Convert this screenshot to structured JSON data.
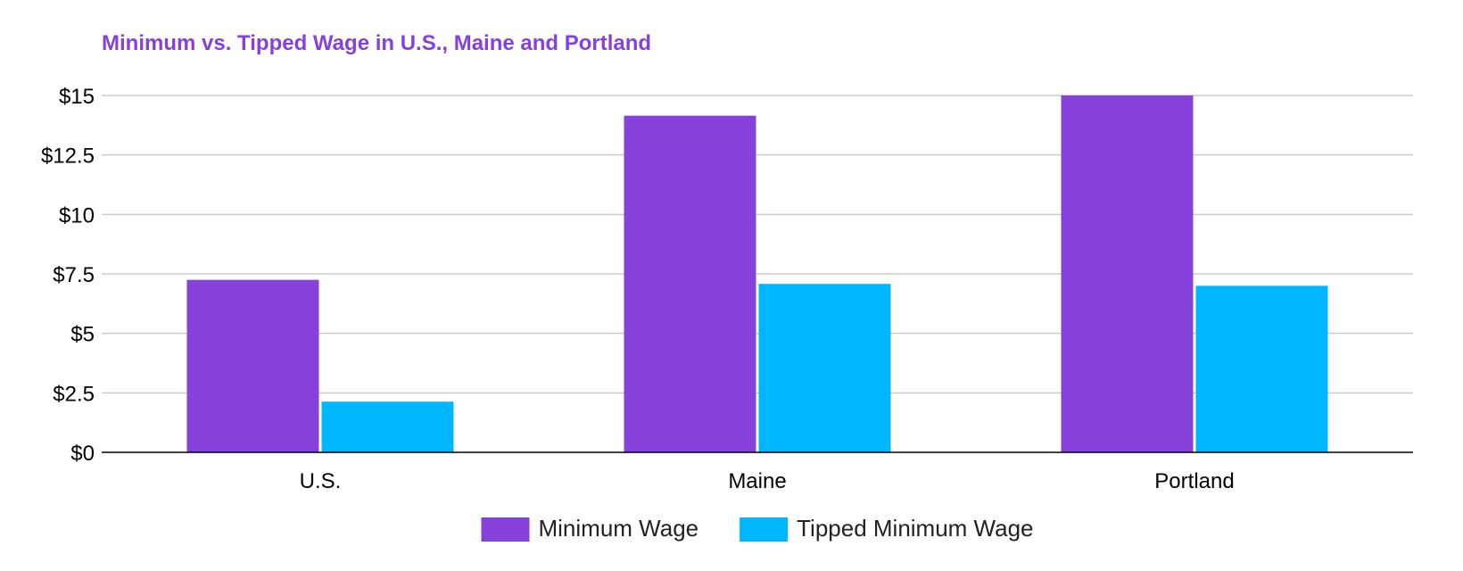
{
  "chart_data": {
    "type": "bar",
    "title": "Minimum vs. Tipped Wage in U.S., Maine and Portland",
    "xlabel": "",
    "ylabel": "",
    "categories": [
      "U.S.",
      "Maine",
      "Portland"
    ],
    "series": [
      {
        "name": "Minimum Wage",
        "values": [
          7.25,
          14.15,
          15.0
        ],
        "color": "#8741db"
      },
      {
        "name": "Tipped Minimum Wage",
        "values": [
          2.13,
          7.08,
          7.0
        ],
        "color": "#00b7ff"
      }
    ],
    "ylim": [
      0,
      15
    ],
    "y_ticks": [
      0,
      2.5,
      5,
      7.5,
      10,
      12.5,
      15
    ],
    "y_tick_labels": [
      "$0",
      "$2.5",
      "$5",
      "$7.5",
      "$10",
      "$12.5",
      "$15"
    ],
    "grid": true,
    "legend_position": "bottom",
    "colors": {
      "title": "#8741db",
      "grid": "#cccccc",
      "axis": "#000000"
    }
  }
}
